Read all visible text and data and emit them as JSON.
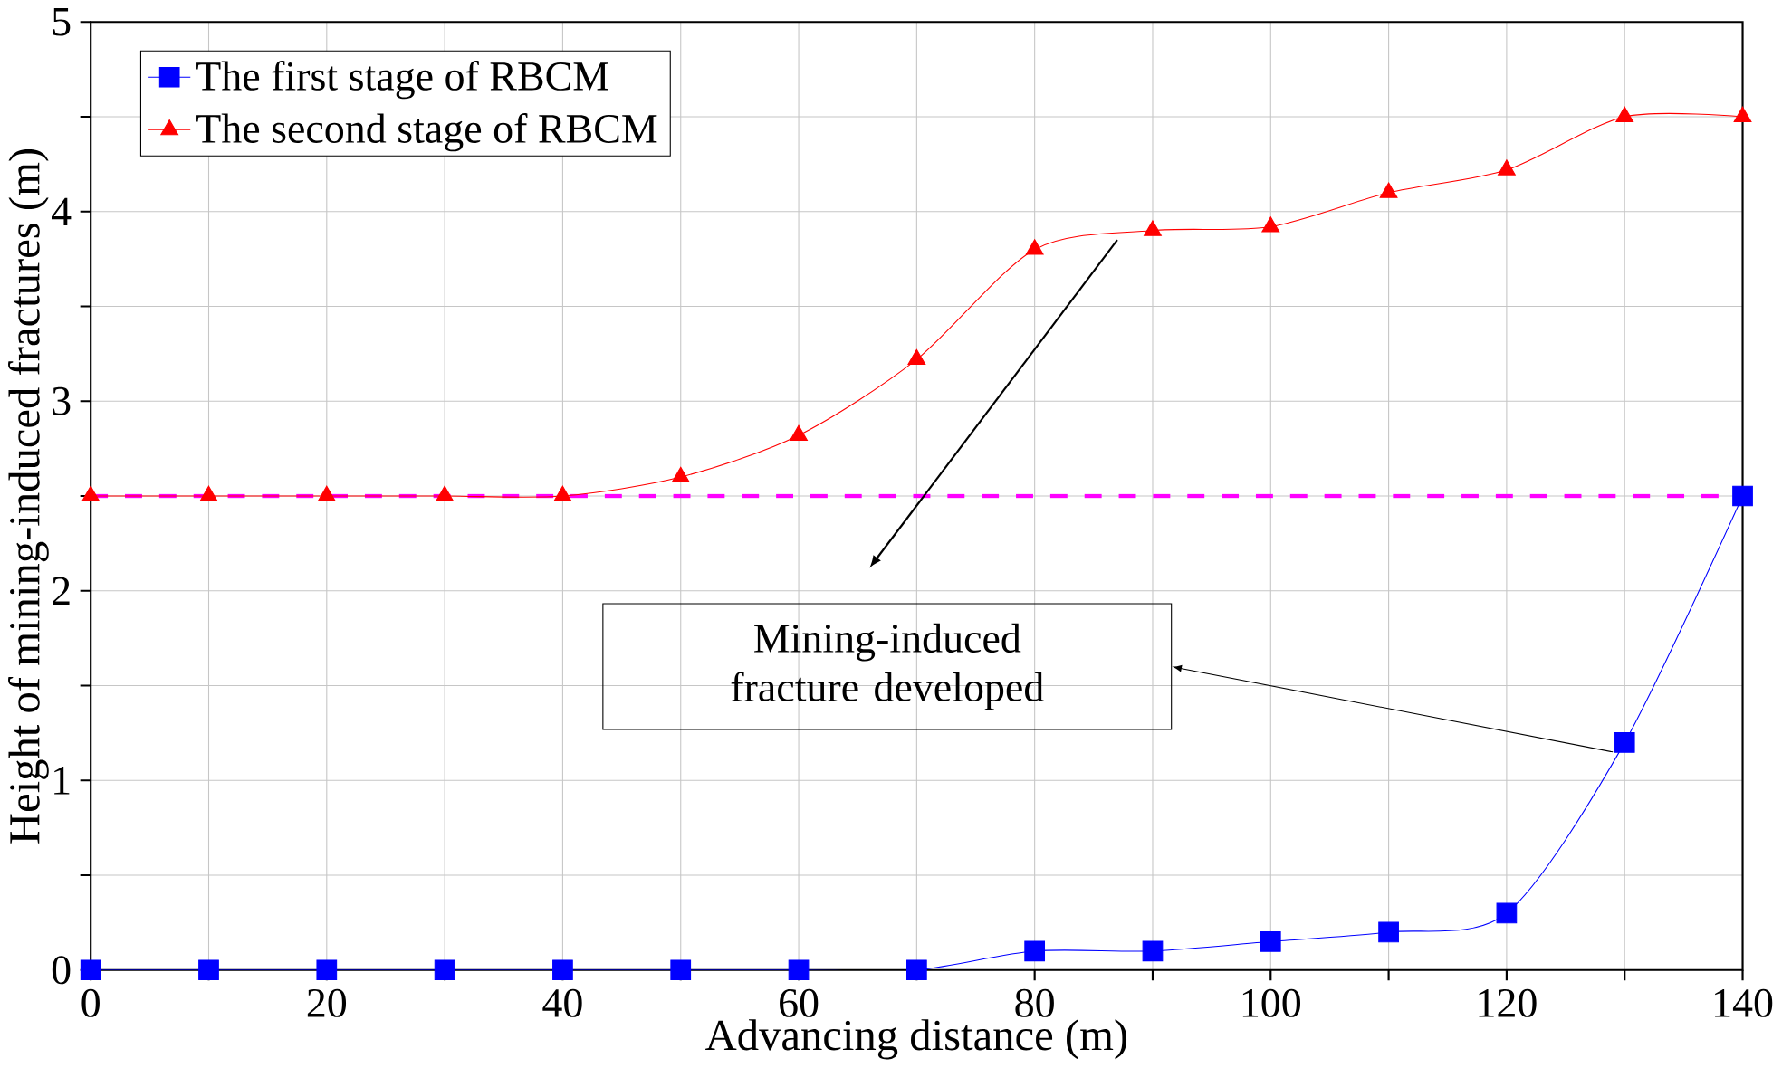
{
  "chart_data": {
    "type": "line",
    "xlabel": "Advancing distance (m)",
    "ylabel": "Height of  mining-induced fractures (m)",
    "x": [
      0,
      10,
      20,
      30,
      40,
      50,
      60,
      70,
      80,
      90,
      100,
      110,
      120,
      130,
      140
    ],
    "series": [
      {
        "name": "The first stage of RBCM",
        "color": "#0000ff",
        "marker": "square",
        "values": [
          0,
          0,
          0,
          0,
          0,
          0,
          0,
          0,
          0.1,
          0.1,
          0.15,
          0.2,
          0.3,
          1.2,
          2.5
        ]
      },
      {
        "name": "The second stage of RBCM",
        "color": "#ff0000",
        "marker": "triangle",
        "values": [
          2.5,
          2.5,
          2.5,
          2.5,
          2.5,
          2.6,
          2.82,
          3.22,
          3.8,
          3.9,
          3.92,
          4.1,
          4.22,
          4.5,
          4.5
        ]
      }
    ],
    "xlim": [
      0,
      140
    ],
    "ylim": [
      0,
      5
    ],
    "xticks": [
      0,
      {
        "value": 10,
        "label": null
      },
      20,
      {
        "value": 30,
        "label": null
      },
      40,
      {
        "value": 50,
        "label": null
      },
      60,
      {
        "value": 70,
        "label": null
      },
      80,
      {
        "value": 90,
        "label": null
      },
      100,
      {
        "value": 110,
        "label": null
      },
      120,
      {
        "value": 130,
        "label": null
      },
      140
    ],
    "yticks": [
      0,
      {
        "value": 0.5,
        "label": null
      },
      1,
      {
        "value": 1.5,
        "label": null
      },
      2,
      {
        "value": 2.5,
        "label": null
      },
      3,
      {
        "value": 3.5,
        "label": null
      },
      4,
      {
        "value": 4.5,
        "label": null
      },
      5
    ],
    "ref_lines": [
      {
        "axis": "y",
        "value": 2.5,
        "color": "#ff00ff",
        "line_style": "dashed"
      }
    ],
    "annotations": [
      "Mining-induced fracture developed"
    ],
    "grid": true,
    "legend": "top left",
    "line_style": "solid"
  }
}
